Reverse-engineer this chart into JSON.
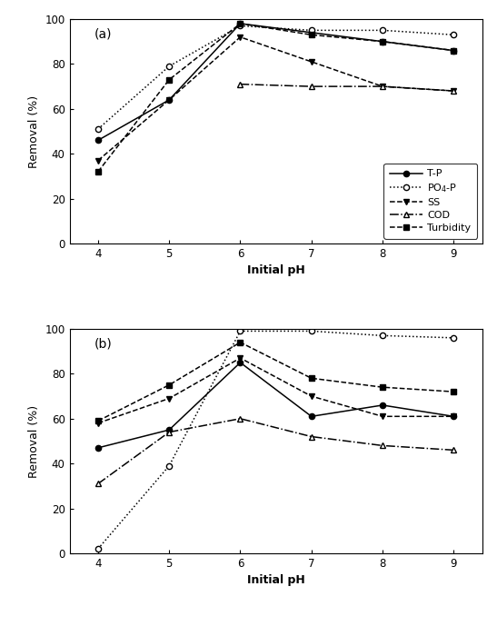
{
  "ph": [
    4,
    5,
    6,
    7,
    8,
    9
  ],
  "panel_a": {
    "label": "(a)",
    "T_P": [
      46,
      64,
      98,
      94,
      90,
      86
    ],
    "PO4_P": [
      51,
      79,
      97,
      95,
      95,
      93
    ],
    "SS": [
      37,
      64,
      92,
      81,
      70,
      68
    ],
    "COD": [
      null,
      null,
      71,
      70,
      70,
      68
    ],
    "Turbidity": [
      32,
      73,
      98,
      93,
      90,
      86
    ]
  },
  "panel_b": {
    "label": "(b)",
    "T_P": [
      47,
      55,
      85,
      61,
      66,
      61
    ],
    "PO4_P": [
      2,
      39,
      99,
      99,
      97,
      96
    ],
    "SS": [
      58,
      69,
      87,
      70,
      61,
      61
    ],
    "COD": [
      31,
      54,
      60,
      52,
      48,
      46
    ],
    "Turbidity": [
      59,
      75,
      94,
      78,
      74,
      72
    ]
  },
  "xlabel": "Initial pH",
  "ylabel": "Removal (%)",
  "ylim": [
    0,
    100
  ],
  "yticks": [
    0,
    20,
    40,
    60,
    80,
    100
  ],
  "legend_labels": [
    "T-P",
    "PO$_4$-P",
    "SS",
    "COD",
    "Turbidity"
  ],
  "line_styles": [
    "-",
    ":",
    "--",
    "-.",
    "--"
  ],
  "markers": [
    "o",
    "o",
    "v",
    "^",
    "s"
  ],
  "marker_fills": [
    "black",
    "white",
    "black",
    "white",
    "black"
  ]
}
